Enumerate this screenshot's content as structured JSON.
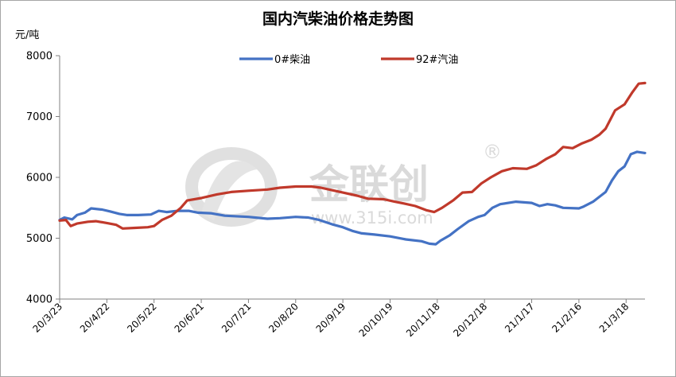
{
  "chart_data": {
    "type": "line",
    "title": "国内汽柴油价格走势图",
    "ylabel": "元/吨",
    "ylim": [
      4000,
      8000
    ],
    "yticks": [
      4000,
      5000,
      6000,
      7000,
      8000
    ],
    "xlim": [
      "2020-03-23",
      "2021-03-18"
    ],
    "xtick_labels": [
      "20/3/23",
      "20/4/22",
      "20/5/22",
      "20/6/21",
      "20/7/21",
      "20/8/20",
      "20/9/19",
      "20/10/19",
      "20/11/18",
      "20/12/18",
      "21/1/17",
      "21/2/16",
      "21/3/18"
    ],
    "legend_position": "top-center",
    "grid": false,
    "watermark": {
      "text": "金联创",
      "url": "www.315i.com",
      "symbol": "®"
    },
    "series": [
      {
        "name": "0#柴油",
        "color": "#4472c4",
        "points": [
          [
            "2020-03-23",
            5300
          ],
          [
            "2020-03-26",
            5340
          ],
          [
            "2020-03-31",
            5310
          ],
          [
            "2020-04-03",
            5380
          ],
          [
            "2020-04-08",
            5420
          ],
          [
            "2020-04-12",
            5490
          ],
          [
            "2020-04-19",
            5470
          ],
          [
            "2020-04-24",
            5440
          ],
          [
            "2020-04-30",
            5400
          ],
          [
            "2020-05-05",
            5380
          ],
          [
            "2020-05-12",
            5380
          ],
          [
            "2020-05-20",
            5390
          ],
          [
            "2020-05-25",
            5450
          ],
          [
            "2020-05-30",
            5430
          ],
          [
            "2020-06-06",
            5450
          ],
          [
            "2020-06-13",
            5450
          ],
          [
            "2020-06-19",
            5420
          ],
          [
            "2020-06-27",
            5410
          ],
          [
            "2020-07-06",
            5370
          ],
          [
            "2020-07-21",
            5350
          ],
          [
            "2020-08-02",
            5320
          ],
          [
            "2020-08-10",
            5330
          ],
          [
            "2020-08-20",
            5350
          ],
          [
            "2020-08-28",
            5340
          ],
          [
            "2020-09-04",
            5300
          ],
          [
            "2020-09-12",
            5230
          ],
          [
            "2020-09-19",
            5180
          ],
          [
            "2020-09-25",
            5120
          ],
          [
            "2020-10-01",
            5080
          ],
          [
            "2020-10-09",
            5060
          ],
          [
            "2020-10-19",
            5030
          ],
          [
            "2020-10-29",
            4980
          ],
          [
            "2020-11-08",
            4950
          ],
          [
            "2020-11-13",
            4910
          ],
          [
            "2020-11-17",
            4900
          ],
          [
            "2020-11-20",
            4960
          ],
          [
            "2020-11-26",
            5050
          ],
          [
            "2020-12-01",
            5150
          ],
          [
            "2020-12-08",
            5280
          ],
          [
            "2020-12-14",
            5350
          ],
          [
            "2020-12-18",
            5380
          ],
          [
            "2020-12-23",
            5500
          ],
          [
            "2020-12-28",
            5560
          ],
          [
            "2021-01-07",
            5600
          ],
          [
            "2021-01-17",
            5580
          ],
          [
            "2021-01-22",
            5530
          ],
          [
            "2021-01-27",
            5560
          ],
          [
            "2021-02-01",
            5540
          ],
          [
            "2021-02-06",
            5500
          ],
          [
            "2021-02-16",
            5490
          ],
          [
            "2021-02-19",
            5520
          ],
          [
            "2021-02-25",
            5600
          ],
          [
            "2021-03-01",
            5680
          ],
          [
            "2021-03-05",
            5760
          ],
          [
            "2021-03-09",
            5950
          ],
          [
            "2021-03-13",
            6100
          ],
          [
            "2021-03-17",
            6180
          ],
          [
            "2021-03-21",
            6380
          ],
          [
            "2021-03-25",
            6420
          ],
          [
            "2021-03-30",
            6400
          ]
        ]
      },
      {
        "name": "92#汽油",
        "color": "#c0392b",
        "points": [
          [
            "2020-03-23",
            5290
          ],
          [
            "2020-03-27",
            5300
          ],
          [
            "2020-03-30",
            5200
          ],
          [
            "2020-04-03",
            5240
          ],
          [
            "2020-04-10",
            5270
          ],
          [
            "2020-04-15",
            5280
          ],
          [
            "2020-04-22",
            5250
          ],
          [
            "2020-04-28",
            5220
          ],
          [
            "2020-05-02",
            5160
          ],
          [
            "2020-05-10",
            5170
          ],
          [
            "2020-05-18",
            5180
          ],
          [
            "2020-05-22",
            5200
          ],
          [
            "2020-05-27",
            5300
          ],
          [
            "2020-06-02",
            5370
          ],
          [
            "2020-06-08",
            5500
          ],
          [
            "2020-06-12",
            5620
          ],
          [
            "2020-06-21",
            5660
          ],
          [
            "2020-07-01",
            5720
          ],
          [
            "2020-07-10",
            5760
          ],
          [
            "2020-07-21",
            5780
          ],
          [
            "2020-08-02",
            5800
          ],
          [
            "2020-08-10",
            5830
          ],
          [
            "2020-08-20",
            5850
          ],
          [
            "2020-08-30",
            5850
          ],
          [
            "2020-09-05",
            5830
          ],
          [
            "2020-09-12",
            5790
          ],
          [
            "2020-09-19",
            5750
          ],
          [
            "2020-09-28",
            5700
          ],
          [
            "2020-10-05",
            5650
          ],
          [
            "2020-10-15",
            5640
          ],
          [
            "2020-10-22",
            5600
          ],
          [
            "2020-10-28",
            5570
          ],
          [
            "2020-11-04",
            5530
          ],
          [
            "2020-11-11",
            5460
          ],
          [
            "2020-11-16",
            5430
          ],
          [
            "2020-11-21",
            5500
          ],
          [
            "2020-11-28",
            5620
          ],
          [
            "2020-12-04",
            5750
          ],
          [
            "2020-12-10",
            5760
          ],
          [
            "2020-12-16",
            5900
          ],
          [
            "2020-12-22",
            6000
          ],
          [
            "2020-12-29",
            6100
          ],
          [
            "2021-01-05",
            6150
          ],
          [
            "2021-01-14",
            6140
          ],
          [
            "2021-01-20",
            6200
          ],
          [
            "2021-01-26",
            6300
          ],
          [
            "2021-02-01",
            6380
          ],
          [
            "2021-02-06",
            6500
          ],
          [
            "2021-02-12",
            6480
          ],
          [
            "2021-02-18",
            6560
          ],
          [
            "2021-02-24",
            6620
          ],
          [
            "2021-03-01",
            6700
          ],
          [
            "2021-03-05",
            6800
          ],
          [
            "2021-03-08",
            6950
          ],
          [
            "2021-03-11",
            7100
          ],
          [
            "2021-03-17",
            7200
          ],
          [
            "2021-03-22",
            7400
          ],
          [
            "2021-03-26",
            7540
          ],
          [
            "2021-03-30",
            7550
          ]
        ]
      }
    ]
  }
}
